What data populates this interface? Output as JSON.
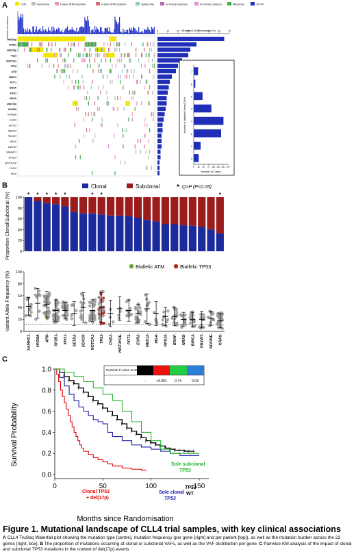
{
  "panelA": {
    "letter": "A",
    "legend": [
      {
        "label": "CNV",
        "color": "#f2e600"
      },
      {
        "label": "Nonsense",
        "color": "#bdbdbd"
      },
      {
        "label": "Frame Shift Insertion",
        "color": "#e8a0a8"
      },
      {
        "label": "Frame Shift Deletion",
        "color": "#d26e7a"
      },
      {
        "label": "Splice Site",
        "color": "#8bc9c6"
      },
      {
        "label": "In Frame Insertion",
        "color": "#b06ab3"
      },
      {
        "label": "In Frame Deletion",
        "color": "#e28ed2"
      },
      {
        "label": "Missense",
        "color": "#3fae49"
      },
      {
        "label": "3'UTR",
        "color": "#1f2fb8"
      }
    ],
    "top_ylabel": "Number of mutations",
    "genes": [
      "del(11q)",
      "SF3B1",
      "del(13q)",
      "+(12)",
      "NOTCH1",
      "TP53",
      "ATM",
      "BIRC3",
      "POT1",
      "BRAF",
      "XPO1",
      "KRAS",
      "del(17p)",
      "MYD88",
      "NFKBIE",
      "EGR2",
      "SETD2",
      "MED12",
      "FBXW7",
      "NRAS",
      "DDX3X",
      "SAMHD1",
      "RPS15",
      "HIST1H1E",
      "CHD2",
      "MGA"
    ],
    "freq_title": "Mutation/CNV Frequency (%)",
    "freq_axis_ticks": [
      "0",
      "10",
      "20",
      "30",
      "40",
      "50",
      "60",
      "70"
    ],
    "freq_values": [
      65,
      38,
      32,
      30,
      24,
      20,
      18,
      14,
      12,
      11,
      10,
      9,
      9,
      8,
      7,
      6,
      5,
      5,
      4,
      4,
      4,
      3,
      3,
      2,
      2,
      2
    ],
    "box": {
      "ylabel": "Number of Mutated Genes/CNVs",
      "xlabel": "Number of Cases",
      "categories": [
        "7",
        "6",
        "5",
        "4",
        "3",
        "2",
        "1",
        "0"
      ],
      "values": [
        22,
        8,
        45,
        90,
        152,
        140,
        35,
        25
      ],
      "xticks": [
        "0",
        "25",
        "50",
        "75",
        "100",
        "125",
        "150",
        "175"
      ],
      "xlim": [
        0,
        175
      ]
    }
  },
  "panelB": {
    "letter": "B",
    "legend_clonal": "Clonal",
    "legend_subclonal": "Subclonal",
    "legend_sig_star": "*",
    "legend_sig_text": "Q>P (P<0.05)",
    "bar_ylabel": "Proportion Clonal/Subclonal (%)",
    "bar_yticks": [
      "0",
      "20",
      "40",
      "60",
      "80",
      "100"
    ],
    "vaf_ylabel": "Variant Allele Frequency (%)",
    "vaf_yticks": [
      "0",
      "20",
      "40",
      "60",
      "80",
      "100"
    ],
    "biallelic_atm": "Biallelic ATM",
    "biallelic_tp53": "Biallelic TP53",
    "colors": {
      "clonal": "#1b2b9c",
      "subclonal": "#9b1c1c",
      "atm": "#6a9e2e",
      "tp53": "#b3281e",
      "point": "#9a9a9a"
    }
  },
  "chart_data": [
    {
      "type": "bar",
      "categories": [
        "SAMHD1",
        "MYD88",
        "ATM",
        "SF3B1",
        "XPO1",
        "SETD2",
        "DDX3X",
        "NOTCH1",
        "TP53",
        "CHD2",
        "HIST1H1E",
        "POT1",
        "EGR2",
        "MED12",
        "MGA",
        "RPS15",
        "BRAF",
        "NRAS",
        "BIRC3",
        "FBXW7",
        "NFKBIE",
        "KRAS"
      ],
      "series": [
        {
          "name": "Clonal",
          "values": [
            100,
            93,
            89,
            87,
            83,
            73,
            70,
            70,
            68,
            66,
            66,
            65,
            62,
            58,
            55,
            50,
            50,
            48,
            47,
            45,
            40,
            33
          ]
        },
        {
          "name": "Subclonal",
          "values": [
            0,
            7,
            11,
            13,
            17,
            27,
            30,
            30,
            32,
            34,
            34,
            35,
            38,
            42,
            45,
            50,
            50,
            52,
            53,
            55,
            60,
            67
          ]
        }
      ],
      "significant": [
        true,
        true,
        true,
        true,
        true,
        false,
        false,
        true,
        true,
        false,
        false,
        false,
        false,
        false,
        false,
        false,
        false,
        false,
        false,
        false,
        false,
        true
      ],
      "ylim": [
        0,
        100
      ]
    },
    {
      "type": "scatter",
      "categories": [
        "SAMHD1",
        "MYD88",
        "ATM",
        "SF3B1",
        "XPO1",
        "SETD2",
        "DDX3X",
        "NOTCH1",
        "TP53",
        "CHD2",
        "HIST1H1E",
        "POT1",
        "EGR2",
        "MED12",
        "MGA",
        "RPS15",
        "BRAF",
        "NRAS",
        "BIRC3",
        "FBXW7",
        "NFKBIE",
        "KRAS"
      ],
      "means": [
        42,
        47,
        45,
        35,
        35,
        30,
        40,
        35,
        40,
        30,
        38,
        35,
        30,
        38,
        30,
        25,
        25,
        20,
        20,
        20,
        22,
        18
      ],
      "sd": [
        15,
        25,
        22,
        18,
        14,
        20,
        25,
        18,
        25,
        22,
        20,
        18,
        15,
        25,
        20,
        15,
        15,
        12,
        12,
        14,
        12,
        12
      ],
      "counts": [
        12,
        8,
        35,
        40,
        25,
        5,
        14,
        30,
        42,
        4,
        4,
        10,
        18,
        10,
        4,
        10,
        14,
        14,
        14,
        12,
        10,
        28
      ],
      "threshold": 12,
      "ylim": [
        0,
        100
      ]
    },
    {
      "type": "line",
      "xlabel": "Months since Randomisation",
      "ylabel": "Survival Probability",
      "xticks": [
        0,
        50,
        100,
        150
      ],
      "yticks": [
        0.0,
        0.2,
        0.4,
        0.6,
        0.8,
        1.0
      ],
      "xlim": [
        0,
        160
      ],
      "ylim": [
        0,
        1.0
      ],
      "series": [
        {
          "name": "WT",
          "color": "#000000",
          "x": [
            0,
            5,
            10,
            15,
            20,
            25,
            30,
            35,
            40,
            45,
            50,
            55,
            60,
            65,
            70,
            75,
            80,
            85,
            90,
            95,
            100,
            105,
            110,
            115,
            120,
            125,
            130,
            135,
            140,
            145
          ],
          "y": [
            1.0,
            0.97,
            0.93,
            0.89,
            0.86,
            0.82,
            0.78,
            0.74,
            0.7,
            0.67,
            0.63,
            0.6,
            0.56,
            0.52,
            0.48,
            0.44,
            0.41,
            0.38,
            0.35,
            0.32,
            0.3,
            0.28,
            0.27,
            0.25,
            0.24,
            0.23,
            0.23,
            0.22,
            0.22,
            0.22
          ]
        },
        {
          "name": "Clonal TP53 + del(17p)",
          "color": "#e00000",
          "x": [
            0,
            2,
            4,
            6,
            8,
            10,
            12,
            14,
            16,
            18,
            20,
            22,
            24,
            26,
            28,
            30,
            35,
            40,
            45,
            50,
            55,
            60,
            70,
            80,
            90,
            95
          ],
          "y": [
            1.0,
            0.95,
            0.88,
            0.8,
            0.74,
            0.68,
            0.62,
            0.56,
            0.5,
            0.45,
            0.4,
            0.36,
            0.32,
            0.28,
            0.25,
            0.22,
            0.19,
            0.16,
            0.14,
            0.12,
            0.1,
            0.08,
            0.06,
            0.05,
            0.04,
            0.04
          ]
        },
        {
          "name": "Sole clonal TP53",
          "color": "#1a1aa8",
          "x": [
            0,
            5,
            10,
            15,
            20,
            25,
            30,
            35,
            40,
            45,
            50,
            55,
            60,
            70,
            80,
            90,
            100,
            110,
            120,
            130,
            140,
            150
          ],
          "y": [
            1.0,
            0.92,
            0.84,
            0.76,
            0.7,
            0.64,
            0.6,
            0.56,
            0.52,
            0.5,
            0.48,
            0.4,
            0.36,
            0.32,
            0.28,
            0.26,
            0.24,
            0.22,
            0.2,
            0.18,
            0.18,
            0.18
          ]
        },
        {
          "name": "Sole subclonal TP53",
          "color": "#22b22e",
          "x": [
            0,
            10,
            20,
            30,
            40,
            50,
            60,
            70,
            80,
            90,
            100,
            110,
            120,
            130,
            140,
            150
          ],
          "y": [
            1.0,
            0.97,
            0.93,
            0.88,
            0.82,
            0.76,
            0.7,
            0.6,
            0.5,
            0.4,
            0.32,
            0.24,
            0.2,
            0.2,
            0.2,
            0.2
          ]
        }
      ]
    }
  ],
  "panelC": {
    "letter": "C",
    "pv_title": "Pairwise P-value to WT",
    "pv_values": [
      "-",
      "<0.001",
      "0.74",
      "0.03"
    ],
    "pv_colors": [
      "#000000",
      "#ee1111",
      "#22cc44",
      "#2a7fd9"
    ],
    "label_subclonal_1": "Sole subclonal",
    "label_subclonal_2": "TP53",
    "label_tp53_right": "TP53",
    "label_wt": "WT",
    "label_sole_clonal_1": "Sole clonal",
    "label_sole_clonal_2": "TP53",
    "label_clonal_del_1": "Clonal TP53",
    "label_clonal_del_2": "+ del(17p)",
    "xlabel": "Months since Randomisation",
    "ylabel": "Survival Probability"
  },
  "caption": {
    "title": "Figure 1. Mutational landscape of CLL4 trial samples, with key clinical associations",
    "a_letter": "A",
    "a_text": "CLL4 TruSeq Waterfall plot showing the mutation type [centre], mutation frequency (per gene [right] and per patient [top]), as well as the mutation burden across the 22 genes [right, box].",
    "b_letter": "B",
    "b_text": "The proportion of mutations occurring at clonal or subclonal VAFs, as well as the VAF distribution per gene.",
    "c_letter": "C",
    "c_text_1": "Pairwise KM analysis of the impact of clonal and subclonal",
    "c_text_gene": "TP53",
    "c_text_2": "mutations in the context of del(17p) events."
  }
}
